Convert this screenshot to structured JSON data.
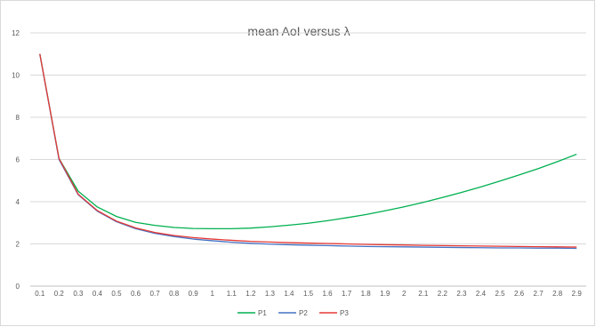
{
  "chart_data": {
    "type": "line",
    "title": "mean AoI versus λ",
    "x": [
      "0.1",
      "0.2",
      "0.3",
      "0.4",
      "0.5",
      "0.6",
      "0.7",
      "0.8",
      "0.9",
      "1",
      "1.1",
      "1.2",
      "1.3",
      "1.4",
      "1.5",
      "1.6",
      "1.7",
      "1.8",
      "1.9",
      "2",
      "2.1",
      "2.2",
      "2.3",
      "2.4",
      "2.5",
      "2.6",
      "2.7",
      "2.8",
      "2.9"
    ],
    "ylim": [
      0,
      12
    ],
    "yticks": [
      "0",
      "2",
      "4",
      "6",
      "8",
      "10",
      "12"
    ],
    "grid": "horizontal",
    "legend_position": "bottom",
    "series": [
      {
        "name": "P1",
        "color": "#00b050",
        "values": [
          11.0,
          6.05,
          4.5,
          3.75,
          3.3,
          3.02,
          2.88,
          2.78,
          2.73,
          2.72,
          2.72,
          2.75,
          2.81,
          2.89,
          2.98,
          3.1,
          3.24,
          3.39,
          3.57,
          3.76,
          3.97,
          4.2,
          4.44,
          4.7,
          4.98,
          5.27,
          5.57,
          5.9,
          6.25
        ]
      },
      {
        "name": "P2",
        "color": "#4472c4",
        "values": [
          11.0,
          6.0,
          4.33,
          3.55,
          3.05,
          2.72,
          2.5,
          2.35,
          2.23,
          2.15,
          2.08,
          2.03,
          1.99,
          1.96,
          1.94,
          1.92,
          1.9,
          1.88,
          1.87,
          1.86,
          1.85,
          1.84,
          1.83,
          1.82,
          1.81,
          1.81,
          1.8,
          1.8,
          1.79
        ]
      },
      {
        "name": "P3",
        "color": "#e53935",
        "values": [
          11.0,
          6.05,
          4.36,
          3.58,
          3.08,
          2.76,
          2.54,
          2.4,
          2.3,
          2.23,
          2.17,
          2.12,
          2.09,
          2.06,
          2.04,
          2.02,
          2.0,
          1.98,
          1.96,
          1.95,
          1.93,
          1.92,
          1.91,
          1.9,
          1.89,
          1.88,
          1.87,
          1.86,
          1.85
        ]
      }
    ]
  }
}
